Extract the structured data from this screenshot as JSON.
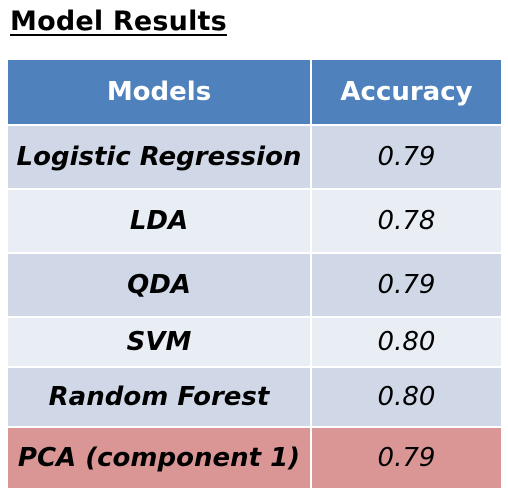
{
  "title": "Model Results",
  "table": {
    "headers": [
      "Models",
      "Accuracy"
    ],
    "rows": [
      {
        "model": "Logistic Regression",
        "accuracy": "0.79"
      },
      {
        "model": "LDA",
        "accuracy": "0.78"
      },
      {
        "model": "QDA",
        "accuracy": "0.79"
      },
      {
        "model": "SVM",
        "accuracy": "0.80"
      },
      {
        "model": "Random Forest",
        "accuracy": "0.80"
      },
      {
        "model": "PCA (component 1)",
        "accuracy": "0.79"
      }
    ]
  },
  "colors": {
    "header_bg": "#4f81bd",
    "row_band_dark": "#d0d8e8",
    "row_band_light": "#e9edf4",
    "highlight_row": "#d99694"
  }
}
